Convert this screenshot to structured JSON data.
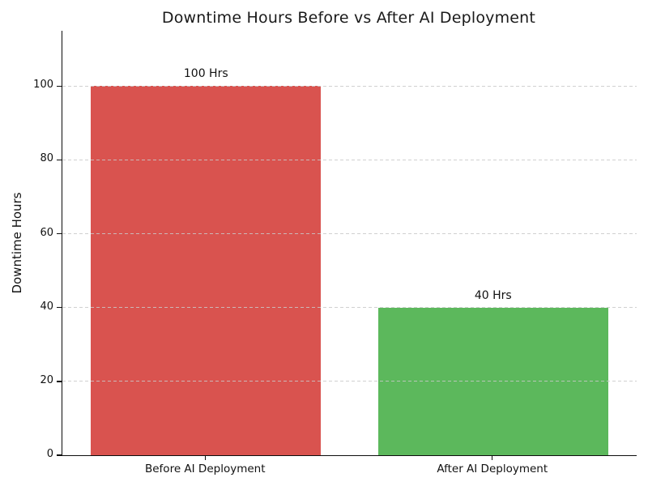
{
  "chart_data": {
    "type": "bar",
    "title": "Downtime Hours Before vs After AI Deployment",
    "xlabel": "",
    "ylabel": "Downtime Hours",
    "categories": [
      "Before AI Deployment",
      "After AI Deployment"
    ],
    "values": [
      100,
      40
    ],
    "bar_labels": [
      "100 Hrs",
      "40 Hrs"
    ],
    "bar_colors": [
      "#d9534f",
      "#5cb85c"
    ],
    "yticks": [
      0,
      20,
      40,
      60,
      80,
      100
    ],
    "ylim": [
      0,
      115
    ],
    "grid": "horizontal-dashed",
    "grid_color": "#c9c9c9",
    "legend": "none",
    "background_color": "#ffffff",
    "title_color": "#1a1a1a",
    "axis_color": "#0d0d0d"
  }
}
